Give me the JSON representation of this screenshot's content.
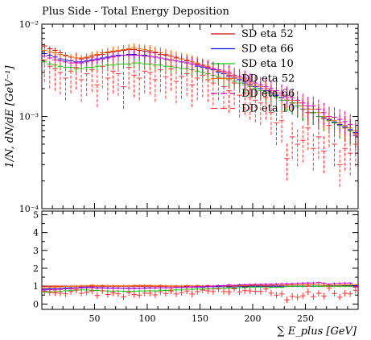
{
  "chart_data": {
    "type": "scatter",
    "title": "Plus Side - Total Energy Deposition",
    "xlabel": "∑ E_plus [GeV]",
    "ylabel": "1/N, dN/dE [GeV⁻¹]",
    "xlim": [
      0,
      300
    ],
    "xticks": [
      50,
      100,
      150,
      200,
      250
    ],
    "ylim": [
      0.0001,
      0.01
    ],
    "yscale": "log",
    "yticks": [
      "10⁻⁴",
      "10⁻³",
      "10⁻²"
    ],
    "ratio_ylim": [
      -0.3,
      5.2
    ],
    "ratio_yticks": [
      0,
      1,
      2,
      3,
      4,
      5
    ],
    "legend": "top-right",
    "bin_width": 5,
    "x": [
      2.5,
      7.5,
      12.5,
      17.5,
      22.5,
      27.5,
      32.5,
      37.5,
      42.5,
      47.5,
      52.5,
      57.5,
      62.5,
      67.5,
      72.5,
      77.5,
      82.5,
      87.5,
      92.5,
      97.5,
      102.5,
      107.5,
      112.5,
      117.5,
      122.5,
      127.5,
      132.5,
      137.5,
      142.5,
      147.5,
      152.5,
      157.5,
      162.5,
      167.5,
      172.5,
      177.5,
      182.5,
      187.5,
      192.5,
      197.5,
      202.5,
      207.5,
      212.5,
      217.5,
      222.5,
      227.5,
      232.5,
      237.5,
      242.5,
      247.5,
      252.5,
      257.5,
      262.5,
      267.5,
      272.5,
      277.5,
      282.5,
      287.5,
      292.5,
      297.5
    ],
    "series": [
      {
        "name": "SD eta 52",
        "color": "#cc0000",
        "style": "solid",
        "values": [
          0.0058,
          0.0054,
          0.0052,
          0.0049,
          0.0046,
          0.0044,
          0.0043,
          0.0042,
          0.0043,
          0.0044,
          0.0046,
          0.0047,
          0.0049,
          0.005,
          0.0051,
          0.0052,
          0.0053,
          0.0053,
          0.0052,
          0.0051,
          0.005,
          0.0049,
          0.0047,
          0.0046,
          0.0045,
          0.0043,
          0.0042,
          0.004,
          0.0039,
          0.0037,
          0.0036,
          0.0034,
          0.0033,
          0.0031,
          0.003,
          0.0028,
          0.0027,
          0.0025,
          0.0024,
          0.0022,
          0.0021,
          0.002,
          0.0019,
          0.0018,
          0.0017,
          0.0016,
          0.0015,
          0.0014,
          0.0013,
          0.0012,
          0.0011,
          0.0011,
          0.001,
          0.00095,
          0.0009,
          0.00085,
          0.0008,
          0.00075,
          0.0007,
          0.00065
        ]
      },
      {
        "name": "SD eta 66",
        "color": "#0000ff",
        "style": "solid",
        "values": [
          0.0048,
          0.0046,
          0.0044,
          0.0042,
          0.0041,
          0.004,
          0.0039,
          0.0039,
          0.004,
          0.0041,
          0.0042,
          0.0043,
          0.0044,
          0.0045,
          0.0046,
          0.0046,
          0.0047,
          0.0047,
          0.0046,
          0.0046,
          0.0045,
          0.0044,
          0.0043,
          0.0042,
          0.0041,
          0.004,
          0.0039,
          0.0038,
          0.0037,
          0.0035,
          0.0034,
          0.0033,
          0.0032,
          0.003,
          0.0029,
          0.0027,
          0.0026,
          0.0025,
          0.0023,
          0.0022,
          0.0021,
          0.002,
          0.0019,
          0.0018,
          0.0017,
          0.0016,
          0.0015,
          0.0014,
          0.0013,
          0.0012,
          0.0012,
          0.0011,
          0.001,
          0.00097,
          0.00092,
          0.00087,
          0.00082,
          0.00077,
          0.00072,
          0.00067
        ]
      },
      {
        "name": "SD eta 10",
        "color": "#00cc00",
        "style": "solid",
        "values": [
          0.0039,
          0.0037,
          0.0036,
          0.0035,
          0.0034,
          0.0034,
          0.0033,
          0.0033,
          0.0034,
          0.0034,
          0.0035,
          0.0035,
          0.0036,
          0.0036,
          0.0037,
          0.0037,
          0.0037,
          0.0038,
          0.0038,
          0.0037,
          0.0037,
          0.0036,
          0.0036,
          0.0035,
          0.0035,
          0.0034,
          0.0033,
          0.0033,
          0.0032,
          0.0031,
          0.003,
          0.0029,
          0.0028,
          0.0027,
          0.0026,
          0.0025,
          0.0024,
          0.0023,
          0.0022,
          0.0021,
          0.002,
          0.0019,
          0.0018,
          0.0017,
          0.0016,
          0.0015,
          0.0015,
          0.0014,
          0.0013,
          0.0012,
          0.0012,
          0.0011,
          0.001,
          0.00096,
          0.0009,
          0.00085,
          0.0008,
          0.00075,
          0.0007,
          0.00062
        ]
      },
      {
        "name": "DD eta 52",
        "color": "#ff6600",
        "style": "solid",
        "values": [
          0.0052,
          0.005,
          0.0049,
          0.0047,
          0.0045,
          0.0044,
          0.0043,
          0.0043,
          0.0044,
          0.0046,
          0.0047,
          0.0049,
          0.005,
          0.0051,
          0.0052,
          0.0053,
          0.0054,
          0.0055,
          0.0054,
          0.0053,
          0.0052,
          0.005,
          0.0049,
          0.0047,
          0.0045,
          0.0044,
          0.0042,
          0.0041,
          0.0039,
          0.0038,
          0.0036,
          0.0035,
          0.0033,
          0.0032,
          0.003,
          0.0029,
          0.0027,
          0.0026,
          0.0025,
          0.0023,
          0.0022,
          0.0021,
          0.002,
          0.0019,
          0.0018,
          0.0017,
          0.0016,
          0.0015,
          0.0014,
          0.0013,
          0.0012,
          0.0012,
          0.0011,
          0.001,
          0.00095,
          0.0009,
          0.00085,
          0.0008,
          0.00075,
          0.0007
        ]
      },
      {
        "name": "DD eta 66",
        "color": "#cc00cc",
        "style": "dashed",
        "values": [
          0.0045,
          0.0043,
          0.0041,
          0.004,
          0.0039,
          0.0038,
          0.0038,
          0.0038,
          0.0039,
          0.004,
          0.0041,
          0.0042,
          0.0043,
          0.0044,
          0.0045,
          0.0046,
          0.0046,
          0.0046,
          0.0046,
          0.0045,
          0.0045,
          0.0044,
          0.0043,
          0.0042,
          0.0041,
          0.004,
          0.0039,
          0.0038,
          0.0037,
          0.0036,
          0.0035,
          0.0034,
          0.0033,
          0.0032,
          0.0031,
          0.003,
          0.0028,
          0.0027,
          0.0026,
          0.0024,
          0.0023,
          0.0022,
          0.0021,
          0.002,
          0.0019,
          0.0018,
          0.0017,
          0.0016,
          0.0015,
          0.0014,
          0.0013,
          0.0013,
          0.0012,
          0.0011,
          0.001,
          0.00098,
          0.00093,
          0.00088,
          0.00082,
          0.00062
        ]
      },
      {
        "name": "DD eta 10",
        "color": "#ff3333",
        "style": "dashed",
        "values": [
          0.0041,
          0.0035,
          0.0033,
          0.003,
          0.0026,
          0.0031,
          0.0034,
          0.0025,
          0.0029,
          0.0032,
          0.0022,
          0.0035,
          0.0026,
          0.0031,
          0.0029,
          0.0021,
          0.0034,
          0.0028,
          0.0026,
          0.0031,
          0.003,
          0.0025,
          0.0032,
          0.0027,
          0.0033,
          0.0024,
          0.0027,
          0.0029,
          0.0022,
          0.0026,
          0.0028,
          0.0025,
          0.0023,
          0.0026,
          0.0021,
          0.0019,
          0.0023,
          0.0017,
          0.0018,
          0.0016,
          0.0015,
          0.0014,
          0.0016,
          0.0011,
          0.00085,
          0.0009,
          0.00035,
          0.0006,
          0.0005,
          0.00055,
          0.00075,
          0.00045,
          0.0006,
          0.00042,
          0.0008,
          0.0005,
          0.0003,
          0.00045,
          0.0004,
          0.0005
        ]
      }
    ],
    "ratio_series": [
      {
        "name": "SD eta 52",
        "values": [
          1.0,
          1.0,
          1.0,
          1.0,
          1.0,
          1.0,
          1.0,
          1.0,
          1.0,
          1.0,
          1.0,
          1.0,
          1.0,
          1.0,
          1.0,
          1.0,
          1.0,
          1.0,
          1.0,
          1.0,
          1.0,
          1.0,
          1.0,
          1.0,
          1.0,
          1.0,
          1.0,
          1.0,
          1.0,
          1.0,
          1.0,
          1.0,
          1.0,
          1.0,
          1.0,
          1.0,
          1.0,
          1.0,
          1.0,
          1.0,
          1.0,
          1.0,
          1.0,
          1.0,
          1.0,
          1.0,
          1.0,
          1.0,
          1.0,
          1.0,
          1.0,
          1.0,
          1.0,
          1.0,
          1.0,
          1.0,
          1.0,
          1.0,
          1.0,
          1.0
        ]
      },
      {
        "name": "SD eta 66",
        "values": [
          0.83,
          0.85,
          0.85,
          0.86,
          0.89,
          0.91,
          0.91,
          0.93,
          0.93,
          0.93,
          0.91,
          0.91,
          0.9,
          0.9,
          0.9,
          0.88,
          0.89,
          0.89,
          0.88,
          0.9,
          0.9,
          0.9,
          0.91,
          0.91,
          0.91,
          0.93,
          0.93,
          0.95,
          0.95,
          0.95,
          0.94,
          0.97,
          0.97,
          0.97,
          0.97,
          0.96,
          0.96,
          1.0,
          0.96,
          1.0,
          1.0,
          1.0,
          1.0,
          1.0,
          1.0,
          1.0,
          1.0,
          1.0,
          1.0,
          1.0,
          1.09,
          1.0,
          1.0,
          1.02,
          1.02,
          1.02,
          1.02,
          1.03,
          1.03,
          1.03
        ]
      },
      {
        "name": "SD eta 10",
        "values": [
          0.67,
          0.69,
          0.69,
          0.71,
          0.74,
          0.77,
          0.77,
          0.79,
          0.79,
          0.77,
          0.76,
          0.74,
          0.73,
          0.72,
          0.73,
          0.71,
          0.7,
          0.72,
          0.73,
          0.73,
          0.74,
          0.73,
          0.77,
          0.76,
          0.78,
          0.79,
          0.79,
          0.83,
          0.82,
          0.84,
          0.83,
          0.85,
          0.85,
          0.87,
          0.87,
          0.89,
          0.89,
          0.92,
          0.92,
          0.95,
          0.95,
          0.95,
          0.95,
          0.94,
          0.94,
          0.94,
          1.0,
          1.0,
          1.0,
          1.0,
          1.09,
          1.0,
          1.0,
          1.01,
          1.0,
          1.0,
          1.0,
          1.0,
          1.0,
          0.95
        ]
      },
      {
        "name": "DD eta 52",
        "values": [
          0.9,
          0.93,
          0.94,
          0.96,
          0.98,
          1.0,
          1.0,
          1.02,
          1.02,
          1.05,
          1.02,
          1.04,
          1.02,
          1.02,
          1.02,
          1.02,
          1.02,
          1.04,
          1.04,
          1.04,
          1.04,
          1.02,
          1.04,
          1.02,
          1.0,
          1.02,
          1.0,
          1.03,
          1.0,
          1.03,
          1.0,
          1.03,
          1.0,
          1.03,
          1.0,
          1.04,
          1.0,
          1.04,
          1.04,
          1.05,
          1.05,
          1.05,
          1.05,
          1.06,
          1.06,
          1.06,
          1.07,
          1.07,
          1.08,
          1.08,
          1.09,
          1.09,
          1.1,
          1.05,
          1.06,
          1.06,
          1.06,
          1.07,
          1.07,
          1.08
        ]
      },
      {
        "name": "DD eta 66",
        "values": [
          0.78,
          0.8,
          0.79,
          0.82,
          0.85,
          0.86,
          0.88,
          0.9,
          0.91,
          0.91,
          0.89,
          0.89,
          0.88,
          0.88,
          0.88,
          0.88,
          0.87,
          0.87,
          0.88,
          0.88,
          0.9,
          0.9,
          0.91,
          0.91,
          0.91,
          0.93,
          0.93,
          0.95,
          0.95,
          0.97,
          0.97,
          1.0,
          1.0,
          1.03,
          1.03,
          1.07,
          1.04,
          1.08,
          1.08,
          1.09,
          1.1,
          1.1,
          1.11,
          1.11,
          1.12,
          1.13,
          1.13,
          1.14,
          1.15,
          1.17,
          1.18,
          1.18,
          1.2,
          1.16,
          1.11,
          1.15,
          1.16,
          1.17,
          1.17,
          0.95
        ]
      },
      {
        "name": "DD eta 10",
        "values": [
          0.71,
          0.65,
          0.63,
          0.61,
          0.57,
          0.7,
          0.79,
          0.6,
          0.67,
          0.73,
          0.48,
          0.74,
          0.53,
          0.62,
          0.57,
          0.4,
          0.64,
          0.53,
          0.5,
          0.61,
          0.6,
          0.51,
          0.68,
          0.59,
          0.73,
          0.56,
          0.64,
          0.73,
          0.56,
          0.7,
          0.78,
          0.74,
          0.7,
          0.84,
          0.7,
          0.68,
          0.85,
          0.68,
          0.75,
          0.73,
          0.71,
          0.7,
          0.84,
          0.61,
          0.5,
          0.56,
          0.23,
          0.43,
          0.38,
          0.46,
          0.68,
          0.41,
          0.6,
          0.44,
          0.89,
          0.59,
          0.38,
          0.6,
          0.57,
          0.77
        ]
      }
    ]
  }
}
